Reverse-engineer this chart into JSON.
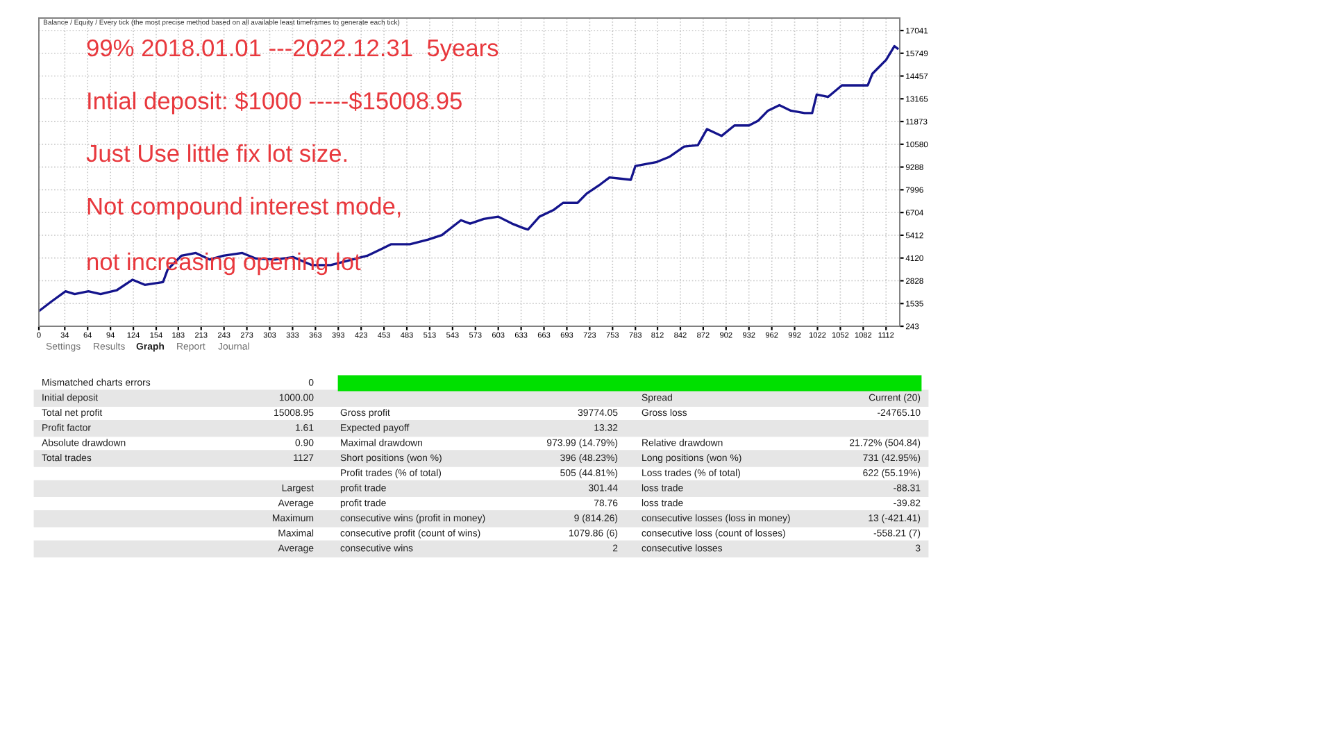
{
  "chart_data": {
    "type": "line",
    "x": [
      0,
      16,
      35,
      47,
      65,
      81,
      102,
      123,
      139,
      163,
      169,
      187,
      206,
      224,
      242,
      267,
      285,
      310,
      334,
      358,
      383,
      407,
      431,
      450,
      462,
      487,
      511,
      529,
      554,
      566,
      584,
      603,
      621,
      636,
      642,
      657,
      676,
      688,
      707,
      719,
      737,
      749,
      777,
      783,
      810,
      828,
      847,
      865,
      877,
      896,
      913,
      932,
      944,
      957,
      972,
      987,
      1005,
      1015,
      1021,
      1036,
      1054,
      1073,
      1088,
      1094,
      1112,
      1123,
      1127
    ],
    "series": [
      {
        "color": "#14148c",
        "values": [
          1100,
          1632,
          2230,
          2072,
          2230,
          2072,
          2284,
          2888,
          2598,
          2755,
          3462,
          4247,
          4404,
          4035,
          4247,
          4404,
          4090,
          4035,
          4168,
          3721,
          3721,
          3987,
          4247,
          4639,
          4898,
          4898,
          5165,
          5424,
          6264,
          6075,
          6342,
          6468,
          6075,
          5817,
          5738,
          6468,
          6861,
          7253,
          7253,
          7779,
          8305,
          8698,
          8564,
          9349,
          9561,
          9875,
          10448,
          10527,
          11445,
          11052,
          11649,
          11649,
          11916,
          12489,
          12803,
          12489,
          12356,
          12356,
          13408,
          13274,
          13926,
          13926,
          13926,
          14585,
          15370,
          16155,
          16022
        ]
      }
    ],
    "xlim": [
      0,
      1130
    ],
    "xticks": [
      0,
      34,
      64,
      94,
      124,
      154,
      183,
      213,
      243,
      273,
      303,
      333,
      363,
      393,
      423,
      453,
      483,
      513,
      543,
      573,
      603,
      633,
      663,
      693,
      723,
      753,
      783,
      812,
      842,
      872,
      902,
      932,
      962,
      992,
      1022,
      1052,
      1082,
      1112
    ],
    "ylim": [
      243,
      17750
    ],
    "yticks": [
      243,
      1535,
      2828,
      4120,
      5412,
      6704,
      7996,
      9288,
      10580,
      11873,
      13165,
      14457,
      15749,
      17041
    ],
    "grid": true,
    "legend": false,
    "marker": "none",
    "line_style": "solid",
    "annotations": [
      "Balance / Equity / Every tick (the most precise method based on all available least timeframes to generate each tick)",
      "99% 2018.01.01 ---2022.12.31  5years",
      "Intial deposit: $1000 -----$15008.95",
      "Just Use little fix lot size.",
      "Not compound interest mode,",
      "not increasing opening lot",
      "Settings",
      "Results",
      "Graph",
      "Report",
      "Journal",
      "Mismatched charts errors",
      "0",
      null,
      null,
      null,
      null,
      "Initial deposit",
      "1000.00",
      null,
      null,
      "Spread",
      "Current (20)",
      "Total net profit",
      "15008.95",
      "Gross profit",
      "39774.05",
      "Gross loss",
      "-24765.10",
      "Profit factor",
      "1.61",
      "Expected payoff",
      "13.32",
      null,
      null,
      "Absolute drawdown",
      "0.90",
      "Maximal drawdown",
      "973.99 (14.79%)",
      "Relative drawdown",
      "21.72% (504.84)",
      "Total trades",
      "1127",
      "Short positions (won %)",
      "396 (48.23%)",
      "Long positions (won %)",
      "731 (42.95%)",
      null,
      null,
      "Profit trades (% of total)",
      "505 (44.81%)",
      "Loss trades (% of total)",
      "622 (55.19%)",
      null,
      "Largest",
      "profit trade",
      "301.44",
      "loss trade",
      "-88.31",
      null,
      "Average",
      "profit trade",
      "78.76",
      "loss trade",
      "-39.82",
      null,
      "Maximum",
      "consecutive wins (profit in money)",
      "9 (814.26)",
      "consecutive losses (loss in money)",
      "13 (-421.41)",
      null,
      "Maximal",
      "consecutive profit (count of wins)",
      "1079.86 (6)",
      "consecutive loss (count of losses)",
      "-558.21 (7)",
      null,
      "Average",
      "consecutive wins",
      "2",
      "consecutive losses",
      "3"
    ]
  }
}
